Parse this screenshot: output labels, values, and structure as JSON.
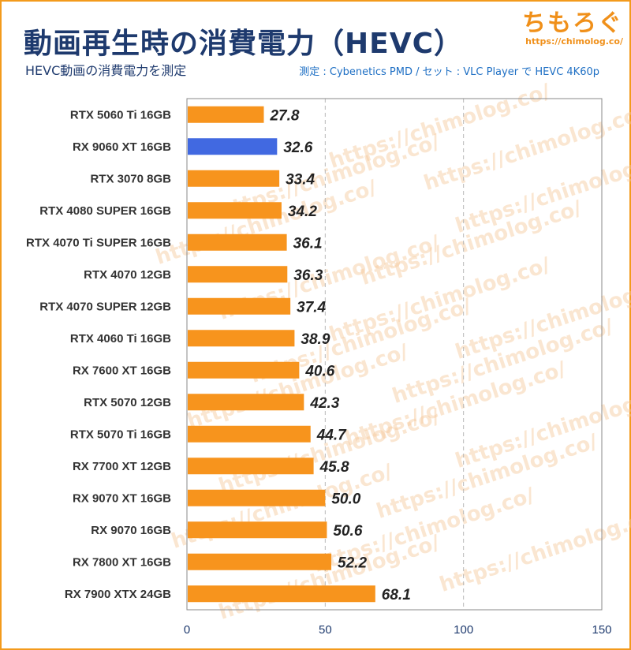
{
  "header": {
    "title": "動画再生時の消費電力（HEVC）",
    "subtitle": "HEVC動画の消費電力を測定",
    "note": "測定 : Cybenetics PMD / セット : VLC Player で HEVC 4K60p",
    "logo_text": "ちもろぐ",
    "logo_url": "https://chimolog.co/"
  },
  "colors": {
    "bar": "#f7941d",
    "highlight": "#4169e1",
    "title": "#1e3a6e",
    "watermark": "#f6c99b"
  },
  "chart_data": {
    "type": "bar",
    "orientation": "horizontal",
    "categories": [
      "RTX 5060 Ti 16GB",
      "RX 9060 XT 16GB",
      "RTX 3070 8GB",
      "RTX 4080 SUPER 16GB",
      "RTX 4070 Ti SUPER 16GB",
      "RTX 4070 12GB",
      "RTX 4070 SUPER 12GB",
      "RTX 4060 Ti 16GB",
      "RX 7600 XT 16GB",
      "RTX 5070 12GB",
      "RTX 5070 Ti 16GB",
      "RX 7700 XT 12GB",
      "RX 9070 XT 16GB",
      "RX 9070 16GB",
      "RX 7800 XT 16GB",
      "RX 7900 XTX 24GB"
    ],
    "values": [
      27.8,
      32.6,
      33.4,
      34.2,
      36.1,
      36.3,
      37.4,
      38.9,
      40.6,
      42.3,
      44.7,
      45.8,
      50.0,
      50.6,
      52.2,
      68.1
    ],
    "value_labels": [
      "27.8",
      "32.6",
      "33.4",
      "34.2",
      "36.1",
      "36.3",
      "37.4",
      "38.9",
      "40.6",
      "42.3",
      "44.7",
      "45.8",
      "50.0",
      "50.6",
      "52.2",
      "68.1"
    ],
    "highlight_index": 1,
    "xlim": [
      0,
      150
    ],
    "xticks": [
      0,
      50,
      100,
      150
    ],
    "xtick_labels": [
      "0",
      "50",
      "100",
      "150"
    ],
    "grid": "vertical dashed",
    "watermark_text": "https://chimolog.co/"
  }
}
